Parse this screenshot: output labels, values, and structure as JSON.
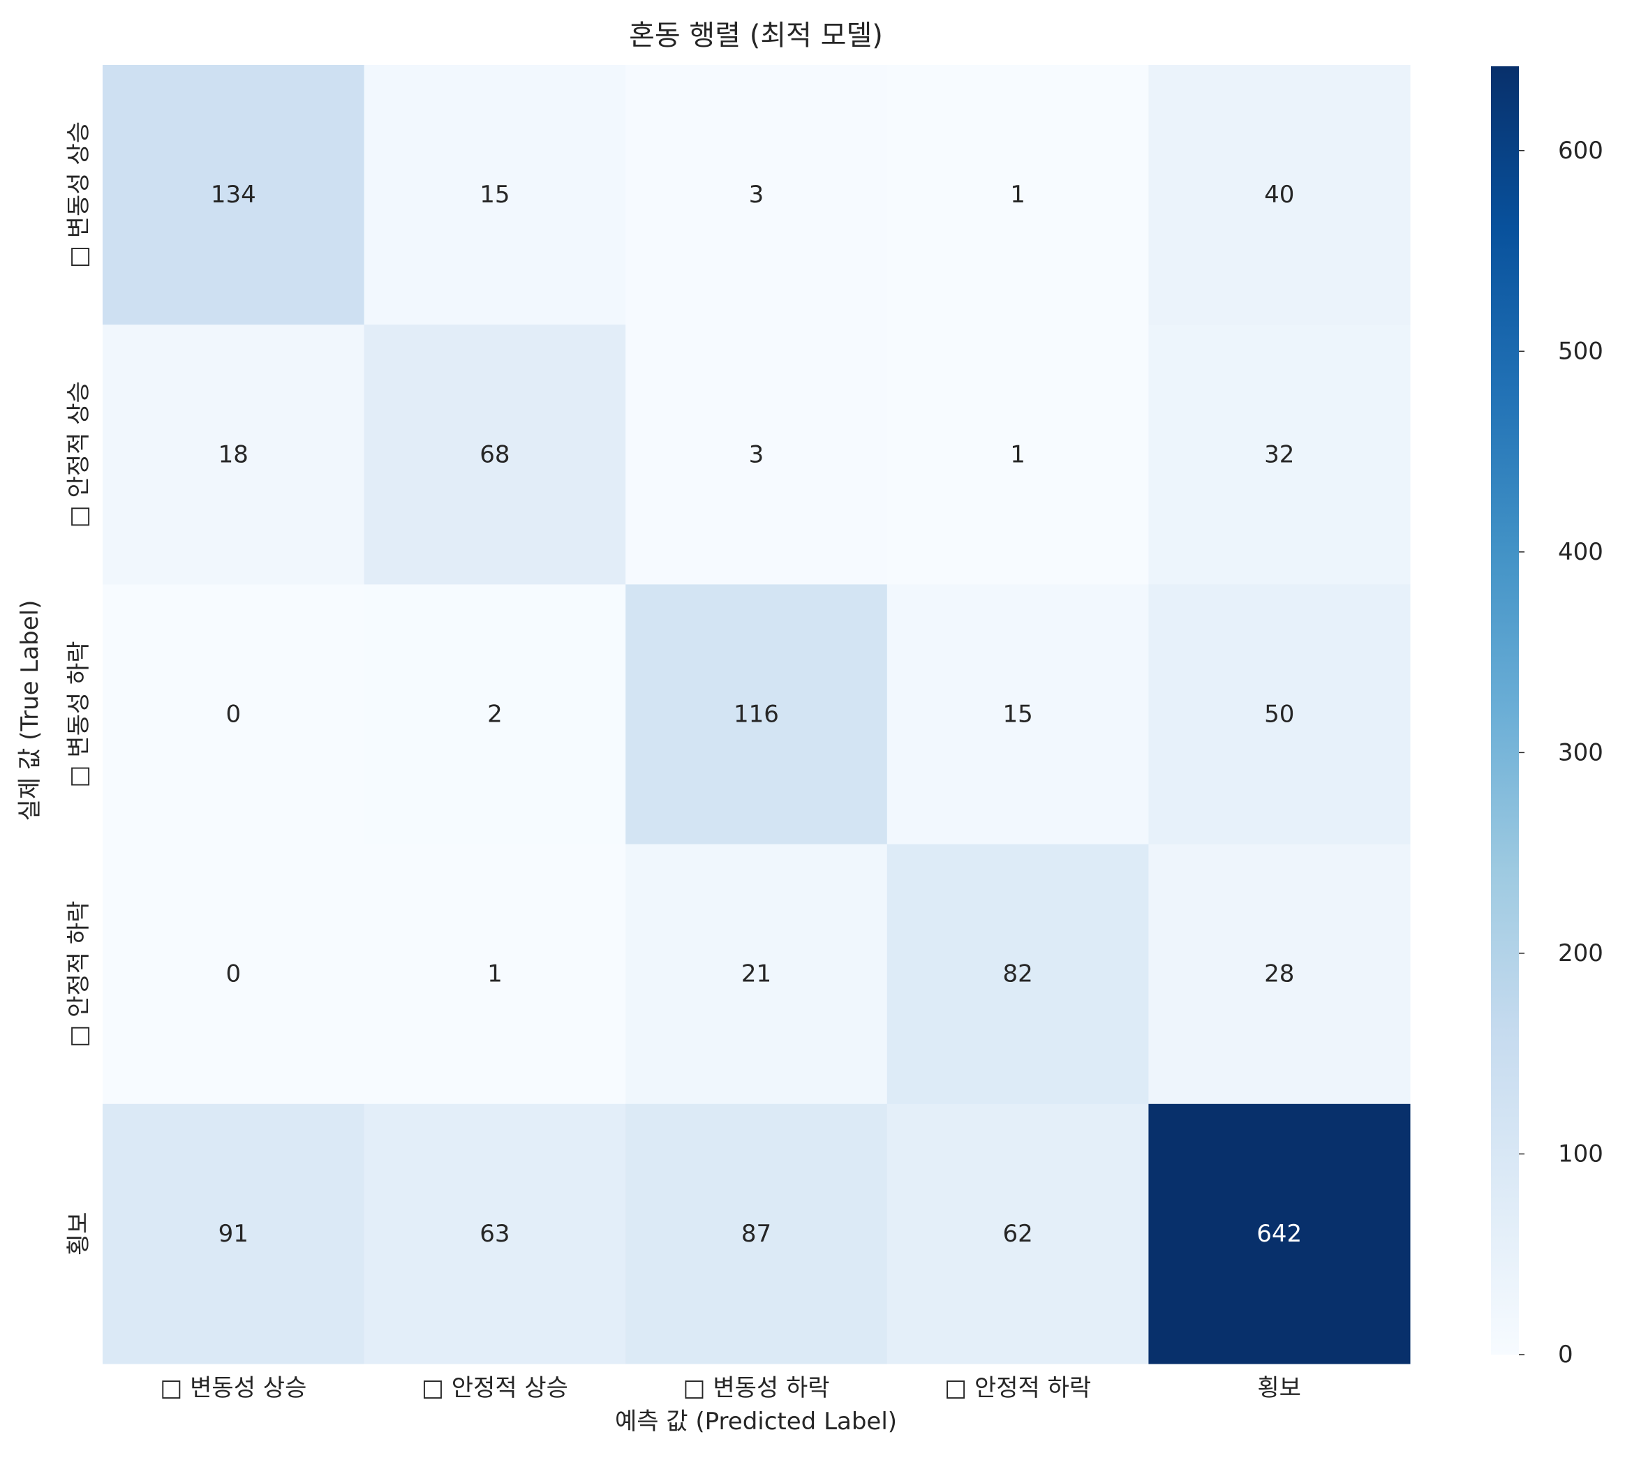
{
  "chart_data": {
    "type": "heatmap",
    "title": "혼동 행렬 (최적 모델)",
    "xlabel": "예측 값 (Predicted Label)",
    "ylabel": "실제 값 (True Label)",
    "x_categories": [
      "□ 변동성 상승",
      "□ 안정적 상승",
      "□ 변동성 하락",
      "□ 안정적 하락",
      "횡보"
    ],
    "y_categories": [
      "□ 변동성 상승",
      "□ 안정적 상승",
      "□ 변동성 하락",
      "□ 안정적 하락",
      "횡보"
    ],
    "values": [
      [
        134,
        15,
        3,
        1,
        40
      ],
      [
        18,
        68,
        3,
        1,
        32
      ],
      [
        0,
        2,
        116,
        15,
        50
      ],
      [
        0,
        1,
        21,
        82,
        28
      ],
      [
        91,
        63,
        87,
        62,
        642
      ]
    ],
    "colormap": "Blues",
    "colorbar": {
      "range": [
        0,
        642
      ],
      "ticks": [
        0,
        100,
        200,
        300,
        400,
        500,
        600
      ]
    },
    "annotate": true,
    "grid": false
  }
}
